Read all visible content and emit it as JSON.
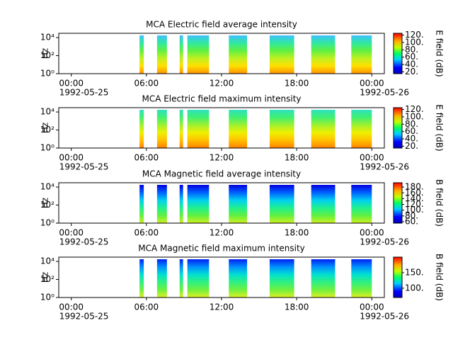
{
  "chart_data": [
    {
      "type": "spectrogram",
      "title": "MCA  Electric field average intensity",
      "ylabel": "Hz",
      "yscale": "log",
      "ylim": [
        1,
        30000
      ],
      "yticks": [
        {
          "value": 1,
          "label": "10⁰"
        },
        {
          "value": 100,
          "label": "10²"
        },
        {
          "value": 10000,
          "label": "10⁴"
        }
      ],
      "xlim": [
        -1,
        25
      ],
      "xticks": [
        {
          "value": 0,
          "label": "00:00"
        },
        {
          "value": 6,
          "label": "06:00"
        },
        {
          "value": 12,
          "label": "12:00"
        },
        {
          "value": 18,
          "label": "18:00"
        },
        {
          "value": 24,
          "label": "00:00"
        }
      ],
      "xtick_dates": [
        {
          "value": 0,
          "label": "1992-05-25"
        },
        {
          "value": 24,
          "label": "1992-05-26"
        }
      ],
      "segments": [
        [
          5.45,
          5.79
        ],
        [
          6.85,
          7.64
        ],
        [
          8.65,
          8.93
        ],
        [
          9.27,
          11.0
        ],
        [
          12.58,
          14.04
        ],
        [
          15.84,
          17.8
        ],
        [
          19.16,
          21.07
        ],
        [
          22.36,
          24.0
        ]
      ],
      "fill_colors": [
        "#40c0ff",
        "#30e8a0",
        "#60f040",
        "#c0f020",
        "#ffe000",
        "#ff9000"
      ],
      "colorbar_label": "E field (dB)",
      "clim": [
        15,
        125
      ],
      "cticks": [
        {
          "value": 20,
          "label": "20."
        },
        {
          "value": 40,
          "label": "40."
        },
        {
          "value": 60,
          "label": "60."
        },
        {
          "value": 80,
          "label": "80."
        },
        {
          "value": 100,
          "label": "100."
        },
        {
          "value": 120,
          "label": "120."
        }
      ]
    },
    {
      "type": "spectrogram",
      "title": "MCA  Electric field maximum intensity",
      "ylabel": "Hz",
      "yscale": "log",
      "ylim": [
        1,
        30000
      ],
      "yticks": [
        {
          "value": 1,
          "label": "10⁰"
        },
        {
          "value": 100,
          "label": "10²"
        },
        {
          "value": 10000,
          "label": "10⁴"
        }
      ],
      "xlim": [
        -1,
        25
      ],
      "xticks": [
        {
          "value": 0,
          "label": "00:00"
        },
        {
          "value": 6,
          "label": "06:00"
        },
        {
          "value": 12,
          "label": "12:00"
        },
        {
          "value": 18,
          "label": "18:00"
        },
        {
          "value": 24,
          "label": "00:00"
        }
      ],
      "xtick_dates": [
        {
          "value": 0,
          "label": "1992-05-25"
        },
        {
          "value": 24,
          "label": "1992-05-26"
        }
      ],
      "segments": [
        [
          5.45,
          5.79
        ],
        [
          6.85,
          7.64
        ],
        [
          8.65,
          8.93
        ],
        [
          9.27,
          11.0
        ],
        [
          12.58,
          14.04
        ],
        [
          15.84,
          17.8
        ],
        [
          19.16,
          21.07
        ],
        [
          22.36,
          24.0
        ]
      ],
      "fill_colors": [
        "#30e0c0",
        "#40f070",
        "#a0f030",
        "#f0f000",
        "#ffc000",
        "#ff8000"
      ],
      "colorbar_label": "E field (dB)",
      "clim": [
        15,
        125
      ],
      "cticks": [
        {
          "value": 20,
          "label": "20."
        },
        {
          "value": 40,
          "label": "40."
        },
        {
          "value": 60,
          "label": "60."
        },
        {
          "value": 80,
          "label": "80."
        },
        {
          "value": 100,
          "label": "100."
        },
        {
          "value": 120,
          "label": "120."
        }
      ]
    },
    {
      "type": "spectrogram",
      "title": "MCA  Magnetic field average intensity",
      "ylabel": "Hz",
      "yscale": "log",
      "ylim": [
        1,
        30000
      ],
      "yticks": [
        {
          "value": 1,
          "label": "10⁰"
        },
        {
          "value": 100,
          "label": "10²"
        },
        {
          "value": 10000,
          "label": "10⁴"
        }
      ],
      "xlim": [
        -1,
        25
      ],
      "xticks": [
        {
          "value": 0,
          "label": "00:00"
        },
        {
          "value": 6,
          "label": "06:00"
        },
        {
          "value": 12,
          "label": "12:00"
        },
        {
          "value": 18,
          "label": "18:00"
        },
        {
          "value": 24,
          "label": "00:00"
        }
      ],
      "xtick_dates": [
        {
          "value": 0,
          "label": "1992-05-25"
        },
        {
          "value": 24,
          "label": "1992-05-26"
        }
      ],
      "segments": [
        [
          5.45,
          5.79
        ],
        [
          6.85,
          7.64
        ],
        [
          8.65,
          8.93
        ],
        [
          9.27,
          11.0
        ],
        [
          12.58,
          14.04
        ],
        [
          15.84,
          17.8
        ],
        [
          19.16,
          21.07
        ],
        [
          22.36,
          24.0
        ]
      ],
      "fill_colors": [
        "#0000e0",
        "#0060ff",
        "#00d0f0",
        "#20f090",
        "#60f040",
        "#d0f020"
      ],
      "colorbar_label": "B field (dB)",
      "clim": [
        55,
        195
      ],
      "cticks": [
        {
          "value": 60,
          "label": "60."
        },
        {
          "value": 80,
          "label": "80."
        },
        {
          "value": 100,
          "label": "100."
        },
        {
          "value": 120,
          "label": "120."
        },
        {
          "value": 140,
          "label": "140."
        },
        {
          "value": 160,
          "label": "160."
        },
        {
          "value": 180,
          "label": "180."
        }
      ]
    },
    {
      "type": "spectrogram",
      "title": "MCA  Magnetic field maximum intensity",
      "ylabel": "Hz",
      "yscale": "log",
      "ylim": [
        1,
        30000
      ],
      "yticks": [
        {
          "value": 1,
          "label": "10⁰"
        },
        {
          "value": 100,
          "label": "10²"
        },
        {
          "value": 10000,
          "label": "10⁴"
        }
      ],
      "xlim": [
        -1,
        25
      ],
      "xticks": [
        {
          "value": 0,
          "label": "00:00"
        },
        {
          "value": 6,
          "label": "06:00"
        },
        {
          "value": 12,
          "label": "12:00"
        },
        {
          "value": 18,
          "label": "18:00"
        },
        {
          "value": 24,
          "label": "00:00"
        }
      ],
      "xtick_dates": [
        {
          "value": 0,
          "label": "1992-05-25"
        },
        {
          "value": 24,
          "label": "1992-05-26"
        }
      ],
      "segments": [
        [
          5.45,
          5.79
        ],
        [
          6.85,
          7.64
        ],
        [
          8.65,
          8.93
        ],
        [
          9.27,
          11.0
        ],
        [
          12.58,
          14.04
        ],
        [
          15.84,
          17.8
        ],
        [
          19.16,
          21.07
        ],
        [
          22.36,
          24.0
        ]
      ],
      "fill_colors": [
        "#0020f0",
        "#0090ff",
        "#00e0d0",
        "#30f080",
        "#70f040",
        "#e0f020"
      ],
      "colorbar_label": "B field (dB)",
      "clim": [
        70,
        200
      ],
      "cticks": [
        {
          "value": 100,
          "label": "100."
        },
        {
          "value": 150,
          "label": "150."
        }
      ]
    }
  ]
}
